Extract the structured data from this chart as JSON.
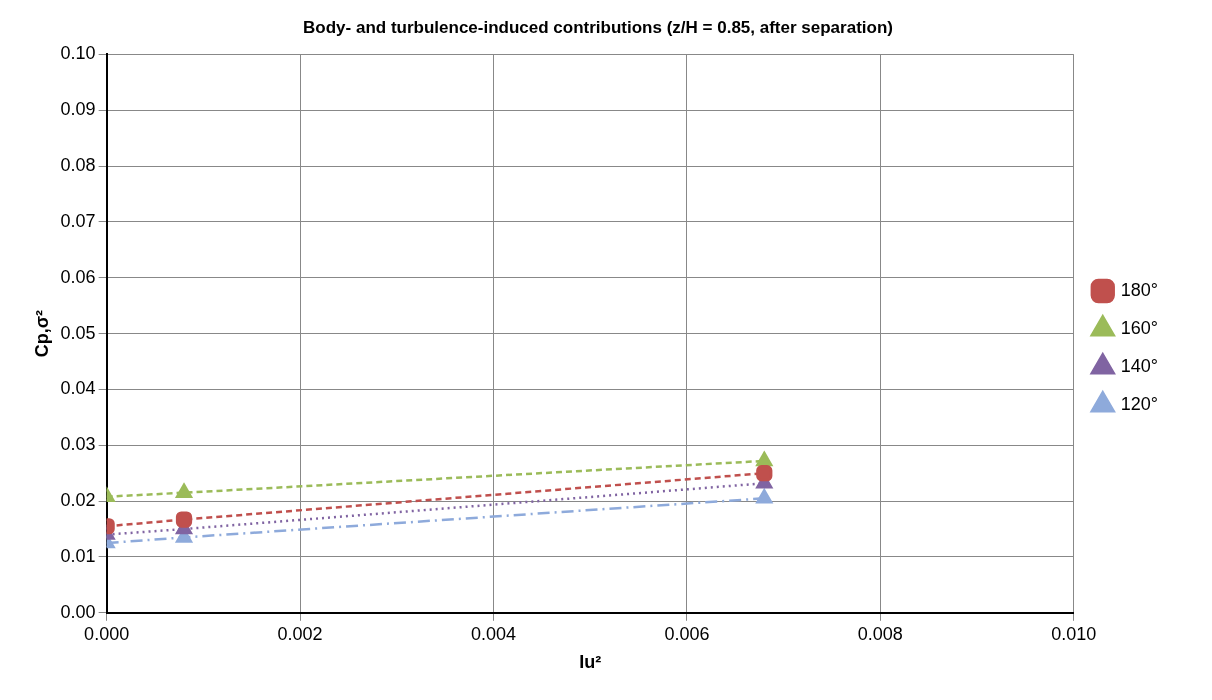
{
  "chart_data": {
    "type": "line",
    "title": "Body- and turbulence-induced contributions (z/H = 0.85, after separation)",
    "xlabel": "Iu²",
    "ylabel": "Cp,σ²",
    "x": [
      0,
      0.0008,
      0.0068
    ],
    "series": [
      {
        "name": "180°",
        "color": "#c0504d",
        "marker": "square",
        "line_style": "dashed",
        "values": [
          0.0155,
          0.0167,
          0.025
        ]
      },
      {
        "name": "160°",
        "color": "#9bbb59",
        "marker": "triangle",
        "line_style": "dashed",
        "values": [
          0.0208,
          0.0215,
          0.0272
        ]
      },
      {
        "name": "140°",
        "color": "#8064a2",
        "marker": "triangle",
        "line_style": "dotted",
        "values": [
          0.014,
          0.015,
          0.0232
        ]
      },
      {
        "name": "120°",
        "color": "#8eaadb",
        "marker": "triangle",
        "line_style": "dashdot",
        "values": [
          0.0125,
          0.0135,
          0.0205
        ]
      }
    ],
    "xlim": [
      0,
      0.01
    ],
    "xticks": [
      {
        "value": 0,
        "label": "0.000"
      },
      {
        "value": 0.002,
        "label": "0.002"
      },
      {
        "value": 0.004,
        "label": "0.004"
      },
      {
        "value": 0.006,
        "label": "0.006"
      },
      {
        "value": 0.008,
        "label": "0.008"
      },
      {
        "value": 0.01,
        "label": "0.010"
      }
    ],
    "ylim": [
      0,
      0.1
    ],
    "yticks": [
      {
        "value": 0,
        "label": "0.00"
      },
      {
        "value": 0.01,
        "label": "0.01"
      },
      {
        "value": 0.02,
        "label": "0.02"
      },
      {
        "value": 0.03,
        "label": "0.03"
      },
      {
        "value": 0.04,
        "label": "0.04"
      },
      {
        "value": 0.05,
        "label": "0.05"
      },
      {
        "value": 0.06,
        "label": "0.06"
      },
      {
        "value": 0.07,
        "label": "0.07"
      },
      {
        "value": 0.08,
        "label": "0.08"
      },
      {
        "value": 0.09,
        "label": "0.09"
      },
      {
        "value": 0.1,
        "label": "0.10"
      }
    ],
    "grid": true,
    "legend": "right"
  }
}
